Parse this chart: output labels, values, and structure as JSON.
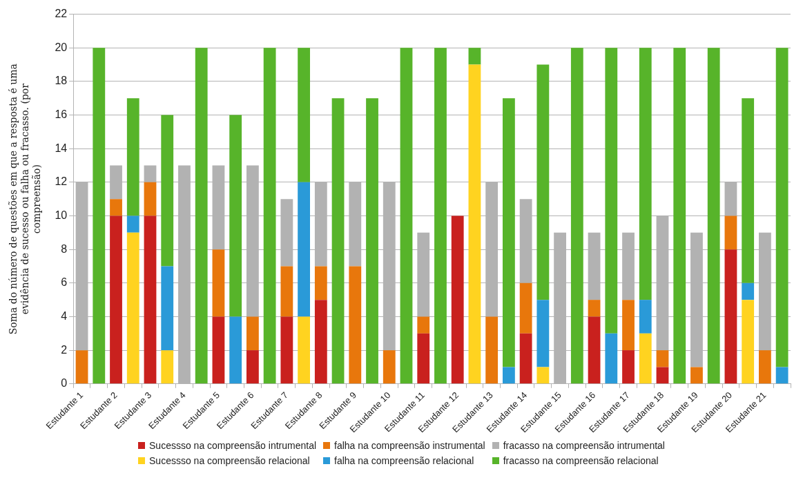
{
  "chart_data": {
    "type": "bar",
    "stacked": true,
    "ylabel": "Soma do número de questões em que a resposta é uma evidência de sucesso ou falha ou fracasso. (por compreensão)",
    "categories": [
      "Estudante 1",
      null,
      "Estudante 2",
      null,
      "Estudante 3",
      null,
      "Estudante 4",
      null,
      "Estudante 5",
      null,
      "Estudante 6",
      null,
      "Estudante 7",
      null,
      "Estudante 8",
      null,
      "Estudante 9",
      null,
      "Estudante 10",
      null,
      "Estudante 11",
      null,
      "Estudante 12",
      null,
      "Estudante 13",
      null,
      "Estudante 14",
      null,
      "Estudante 15",
      null,
      "Estudante 16",
      null,
      "Estudante 17",
      null,
      "Estudante 18",
      null,
      "Estudante 19",
      null,
      "Estudante 20",
      null,
      "Estudante 21",
      null
    ],
    "series": [
      {
        "name": "Sucessso na compreensão intrumental",
        "color": "#c9211e",
        "values": [
          0,
          null,
          10,
          null,
          10,
          null,
          0,
          null,
          4,
          null,
          2,
          null,
          4,
          null,
          5,
          null,
          0,
          null,
          0,
          null,
          3,
          null,
          10,
          null,
          0,
          null,
          3,
          null,
          0,
          null,
          4,
          null,
          2,
          null,
          1,
          null,
          0,
          null,
          8,
          null,
          0,
          null
        ]
      },
      {
        "name": "falha na compreensão instrumental",
        "color": "#e8770c",
        "values": [
          2,
          null,
          1,
          null,
          2,
          null,
          0,
          null,
          4,
          null,
          2,
          null,
          3,
          null,
          2,
          null,
          7,
          null,
          2,
          null,
          1,
          null,
          0,
          null,
          4,
          null,
          3,
          null,
          0,
          null,
          1,
          null,
          3,
          null,
          1,
          null,
          1,
          null,
          2,
          null,
          2,
          null
        ]
      },
      {
        "name": "fracasso na compreensão intrumental",
        "color": "#b2b2b2",
        "values": [
          10,
          null,
          2,
          null,
          1,
          null,
          13,
          null,
          5,
          null,
          9,
          null,
          4,
          null,
          5,
          null,
          5,
          null,
          10,
          null,
          5,
          null,
          0,
          null,
          8,
          null,
          5,
          null,
          9,
          null,
          4,
          null,
          4,
          null,
          8,
          null,
          8,
          null,
          2,
          null,
          7,
          null
        ]
      },
      {
        "name": "Sucessso na compreensão relacional",
        "color": "#ffd320",
        "values": [
          null,
          0,
          null,
          9,
          null,
          2,
          null,
          0,
          null,
          0,
          null,
          0,
          null,
          4,
          null,
          0,
          null,
          0,
          null,
          0,
          null,
          0,
          null,
          19,
          null,
          0,
          null,
          1,
          null,
          0,
          null,
          0,
          null,
          3,
          null,
          0,
          null,
          0,
          null,
          5,
          null,
          0
        ]
      },
      {
        "name": "falha na compreensão relacional",
        "color": "#2a9ad8",
        "values": [
          null,
          0,
          null,
          1,
          null,
          5,
          null,
          0,
          null,
          4,
          null,
          0,
          null,
          8,
          null,
          0,
          null,
          0,
          null,
          0,
          null,
          0,
          null,
          0,
          null,
          1,
          null,
          4,
          null,
          0,
          null,
          3,
          null,
          2,
          null,
          0,
          null,
          0,
          null,
          1,
          null,
          1
        ]
      },
      {
        "name": "fracasso na compreensão relacional",
        "color": "#57b42a",
        "values": [
          null,
          20,
          null,
          7,
          null,
          9,
          null,
          20,
          null,
          12,
          null,
          20,
          null,
          8,
          null,
          17,
          null,
          17,
          null,
          20,
          null,
          20,
          null,
          1,
          null,
          16,
          null,
          14,
          null,
          20,
          null,
          17,
          null,
          15,
          null,
          20,
          null,
          20,
          null,
          11,
          null,
          19
        ]
      }
    ],
    "ylim": [
      0,
      22
    ],
    "yticks": [
      0,
      2,
      4,
      6,
      8,
      10,
      12,
      14,
      16,
      18,
      20,
      22
    ],
    "grid": "y",
    "legend": "bottom"
  }
}
